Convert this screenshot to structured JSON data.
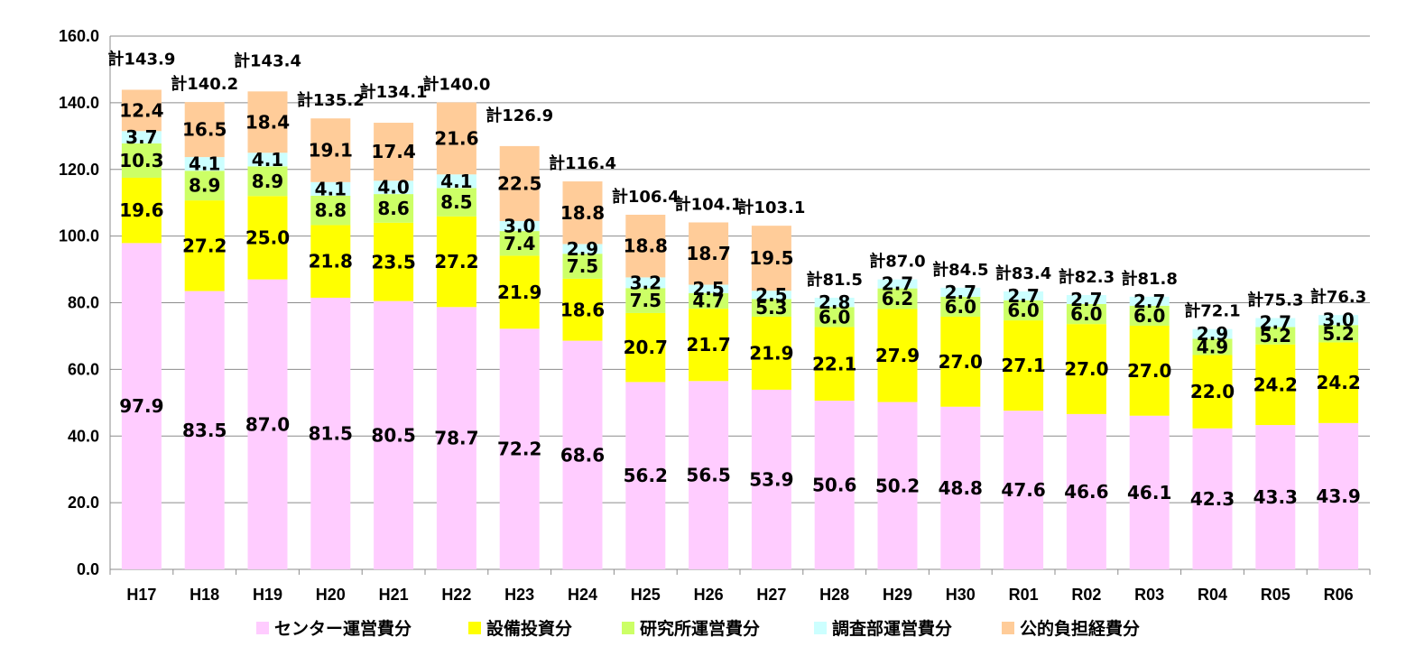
{
  "chart_data": {
    "type": "bar",
    "stacked": true,
    "title": "",
    "xlabel": "",
    "ylabel": "",
    "ylim": [
      0,
      160
    ],
    "yticks": [
      0,
      20,
      40,
      60,
      80,
      100,
      120,
      140,
      160
    ],
    "ytick_labels": [
      "0.0",
      "20.0",
      "40.0",
      "60.0",
      "80.0",
      "100.0",
      "120.0",
      "140.0",
      "160.0"
    ],
    "grid": true,
    "legend_position": "bottom",
    "categories": [
      "H17",
      "H18",
      "H19",
      "H20",
      "H21",
      "H22",
      "H23",
      "H24",
      "H25",
      "H26",
      "H27",
      "H28",
      "H29",
      "H30",
      "R01",
      "R02",
      "R03",
      "R04",
      "R05",
      "R06"
    ],
    "total_prefix": "計",
    "totals": [
      "143.9",
      "140.2",
      "143.4",
      "135.2",
      "134.1",
      "140.0",
      "126.9",
      "116.4",
      "106.4",
      "104.1",
      "103.1",
      "81.5",
      "87.0",
      "84.5",
      "83.4",
      "82.3",
      "81.8",
      "72.1",
      "75.3",
      "76.3"
    ],
    "series": [
      {
        "name": "センター運営費分",
        "color": "#FFCCFF",
        "values": [
          97.9,
          83.5,
          87.0,
          81.5,
          80.5,
          78.7,
          72.2,
          68.6,
          56.2,
          56.5,
          53.9,
          50.6,
          50.2,
          48.8,
          47.6,
          46.6,
          46.1,
          42.3,
          43.3,
          43.9
        ]
      },
      {
        "name": "設備投資分",
        "color": "#FFFF00",
        "values": [
          19.6,
          27.2,
          25.0,
          21.8,
          23.5,
          27.2,
          21.9,
          18.6,
          20.7,
          21.7,
          21.9,
          22.1,
          27.9,
          27.0,
          27.1,
          27.0,
          27.0,
          22.0,
          24.2,
          24.2
        ]
      },
      {
        "name": "研究所運営費分",
        "color": "#CCFF66",
        "values": [
          10.3,
          8.9,
          8.9,
          8.8,
          8.6,
          8.5,
          7.4,
          7.5,
          7.5,
          4.7,
          5.3,
          6.0,
          6.2,
          6.0,
          6.0,
          6.0,
          6.0,
          4.9,
          5.2,
          5.2
        ]
      },
      {
        "name": "調査部運営費分",
        "color": "#CCFFFF",
        "values": [
          3.7,
          4.1,
          4.1,
          4.1,
          4.0,
          4.1,
          3.0,
          2.9,
          3.2,
          2.5,
          2.5,
          2.8,
          2.7,
          2.7,
          2.7,
          2.7,
          2.7,
          2.9,
          2.7,
          3.0
        ]
      },
      {
        "name": "公的負担経費分",
        "color": "#FFCC99",
        "values": [
          12.4,
          16.5,
          18.4,
          19.1,
          17.4,
          21.6,
          22.5,
          18.8,
          18.8,
          18.7,
          19.5,
          null,
          null,
          null,
          null,
          null,
          null,
          null,
          null,
          null
        ]
      }
    ]
  }
}
